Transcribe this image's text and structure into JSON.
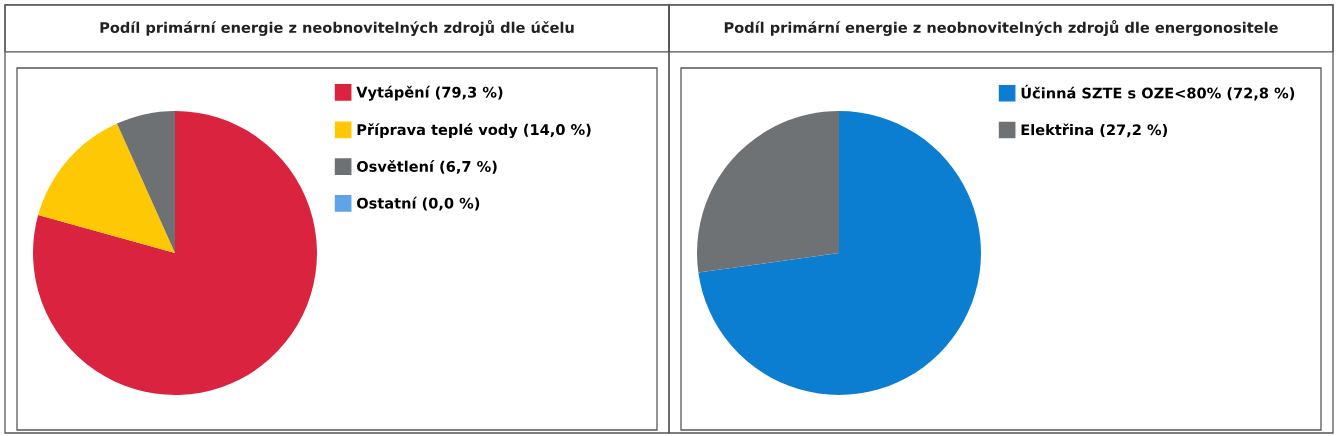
{
  "chart_data": [
    {
      "type": "pie",
      "title": "Podíl primární energie z neobnovitelných zdrojů dle účelu",
      "categories": [
        "Vytápění (79,3 %)",
        "Příprava teplé vody (14,0 %)",
        "Osvětlení (6,7 %)",
        "Ostatní (0,0 %)"
      ],
      "values": [
        79.3,
        14.0,
        6.7,
        0.0
      ],
      "colors": [
        "#d9233f",
        "#ffc805",
        "#6d7173",
        "#5fa3e8"
      ],
      "legend": "top right"
    },
    {
      "type": "pie",
      "title": "Podíl primární energie z neobnovitelných zdrojů dle energonositele",
      "categories": [
        "Účinná SZTE s OZE<80% (72,8 %)",
        "Elektřina (27,2 %)"
      ],
      "values": [
        72.8,
        27.2
      ],
      "colors": [
        "#0c7ed2",
        "#6f7274"
      ],
      "legend": "top right"
    }
  ]
}
